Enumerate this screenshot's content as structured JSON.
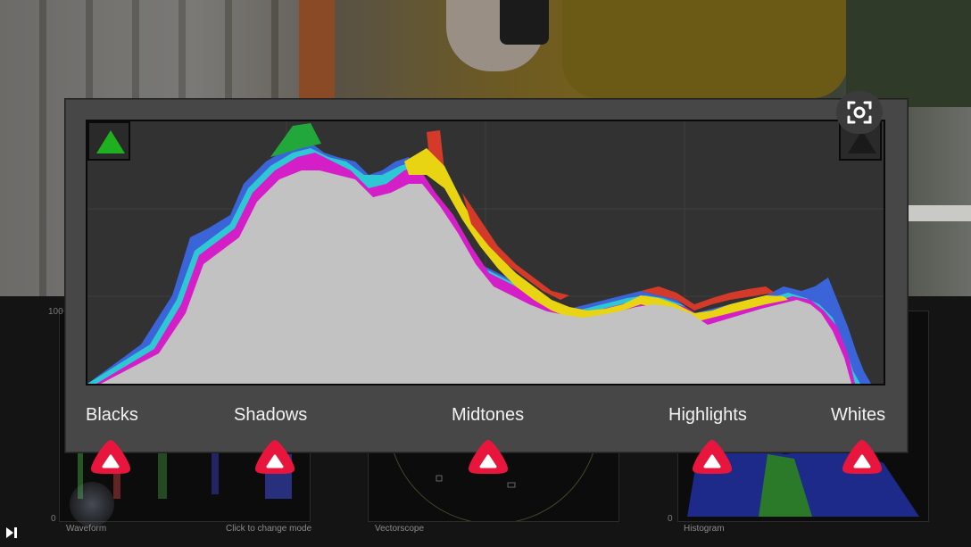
{
  "histogram": {
    "zones": [
      "Blacks",
      "Shadows",
      "Midtones",
      "Highlights",
      "Whites"
    ],
    "clipping": {
      "shadow": "shadow-clipping-indicator",
      "highlight": "highlight-clipping-indicator"
    }
  },
  "scopes": {
    "waveform": {
      "label": "Waveform",
      "hint": "Click to change mode",
      "axis_top": "100",
      "axis_bottom": "0"
    },
    "vectorscope": {
      "label": "Vectorscope"
    },
    "histogram": {
      "label": "Histogram",
      "axis_bottom": "0"
    }
  },
  "colors": {
    "marker": "#e8163c",
    "panel": "#474747",
    "clip_shadow": "#1fb01f"
  }
}
